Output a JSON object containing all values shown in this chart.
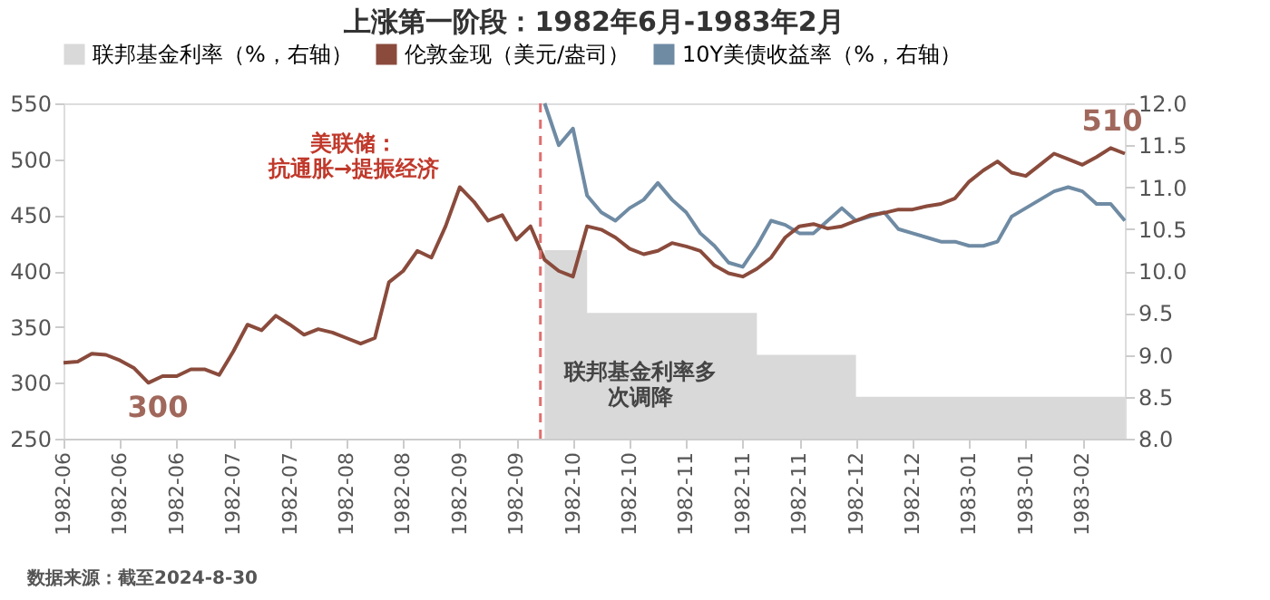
{
  "chart_data": {
    "type": "line",
    "title": "上涨第一阶段：1982年6月-1983年2月",
    "categories": [
      "1982-06",
      null,
      null,
      null,
      "1982-06",
      null,
      null,
      null,
      "1982-06",
      null,
      null,
      null,
      "1982-07",
      null,
      null,
      null,
      "1982-07",
      null,
      null,
      null,
      "1982-08",
      null,
      null,
      null,
      "1982-08",
      null,
      null,
      null,
      "1982-09",
      null,
      null,
      null,
      "1982-09",
      null,
      null,
      null,
      "1982-10",
      null,
      null,
      null,
      "1982-10",
      null,
      null,
      null,
      "1982-11",
      null,
      null,
      null,
      "1982-11",
      null,
      null,
      null,
      "1982-11",
      null,
      null,
      null,
      "1982-12",
      null,
      null,
      null,
      "1982-12",
      null,
      null,
      null,
      "1983-01",
      null,
      null,
      null,
      "1983-01",
      null,
      null,
      null,
      "1983-02",
      null,
      null,
      null
    ],
    "series": [
      {
        "name": "联邦基金利率（%，右轴）",
        "type": "area",
        "axis": "y2",
        "color": "#d9d9d9",
        "values": [
          null,
          null,
          null,
          null,
          null,
          null,
          null,
          null,
          null,
          null,
          null,
          null,
          null,
          null,
          null,
          null,
          null,
          null,
          null,
          null,
          null,
          null,
          null,
          null,
          null,
          null,
          null,
          null,
          null,
          null,
          null,
          null,
          null,
          null,
          10.25,
          10.25,
          10.25,
          9.5,
          9.5,
          9.5,
          9.5,
          9.5,
          9.5,
          9.5,
          9.5,
          9.5,
          9.5,
          9.5,
          9.5,
          9.0,
          9.0,
          9.0,
          9.0,
          9.0,
          9.0,
          9.0,
          8.5,
          8.5,
          8.5,
          8.5,
          8.5,
          8.5,
          8.5,
          8.5,
          8.5,
          8.5,
          8.5,
          8.5,
          8.5,
          8.5,
          8.5,
          8.5,
          8.5,
          8.5,
          8.5,
          8.5
        ]
      },
      {
        "name": "伦敦金现（美元/盎司）",
        "color": "#8a4b3c",
        "values": [
          318,
          319,
          326,
          325,
          320,
          313,
          300,
          306,
          306,
          312,
          312,
          307,
          328,
          352,
          347,
          360,
          352,
          343,
          348,
          345,
          340,
          335,
          340,
          390,
          400,
          418,
          412,
          440,
          475,
          462,
          445,
          450,
          428,
          440,
          410,
          400,
          395,
          440,
          437,
          430,
          420,
          415,
          418,
          425,
          422,
          418,
          405,
          398,
          395,
          402,
          412,
          430,
          440,
          442,
          438,
          440,
          445,
          450,
          452,
          455,
          455,
          458,
          460,
          465,
          480,
          490,
          498,
          488,
          485,
          495,
          505,
          500,
          495,
          502,
          510,
          505
        ]
      },
      {
        "name": "10Y美债收益率（%，右轴）",
        "type": "line",
        "axis": "y2",
        "color": "#6f8ba4",
        "values": [
          null,
          null,
          null,
          null,
          null,
          null,
          null,
          null,
          null,
          null,
          null,
          null,
          null,
          null,
          null,
          null,
          null,
          null,
          null,
          null,
          null,
          null,
          null,
          null,
          null,
          null,
          null,
          null,
          null,
          null,
          null,
          null,
          null,
          null,
          12.0,
          11.5,
          11.7,
          10.9,
          10.7,
          10.6,
          10.75,
          10.85,
          11.05,
          10.85,
          10.7,
          10.45,
          10.3,
          10.1,
          10.05,
          10.3,
          10.6,
          10.55,
          10.45,
          10.45,
          10.6,
          10.75,
          10.6,
          10.65,
          10.7,
          10.5,
          10.45,
          10.4,
          10.35,
          10.35,
          10.3,
          10.3,
          10.35,
          10.65,
          10.75,
          10.85,
          10.95,
          11.0,
          10.95,
          10.8,
          10.8,
          10.6
        ]
      }
    ],
    "ylim": [
      250,
      550
    ],
    "yticks": [
      250,
      300,
      350,
      400,
      450,
      500,
      550
    ],
    "y2lim": [
      8,
      12
    ],
    "y2ticks": [
      {
        "value": 8,
        "label": "8.0"
      },
      {
        "value": 8.5,
        "label": "8.5"
      },
      {
        "value": 9,
        "label": "9.0"
      },
      {
        "value": 9.5,
        "label": "9.5"
      },
      {
        "value": 10,
        "label": "10.0"
      },
      {
        "value": 10.5,
        "label": "10.5"
      },
      {
        "value": 11,
        "label": "11.0"
      },
      {
        "value": 11.5,
        "label": "11.5"
      },
      {
        "value": 12,
        "label": "12.0"
      }
    ],
    "annotations": [
      "美联储：抗通胀→提振经济",
      "300",
      "510",
      "联邦基金利率多次调降",
      "数据来源：截至2024-8-30"
    ],
    "legend": "top",
    "grid": false
  }
}
